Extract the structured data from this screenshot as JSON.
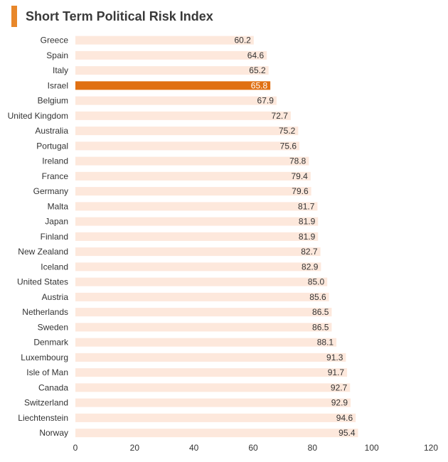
{
  "chart_data": {
    "type": "bar",
    "orientation": "horizontal",
    "title": "Short Term Political Risk Index",
    "xlabel": "",
    "ylabel": "",
    "xlim": [
      0,
      120
    ],
    "x_ticks": [
      0,
      20,
      40,
      60,
      80,
      100,
      120
    ],
    "grid": false,
    "categories": [
      "Greece",
      "Spain",
      "Italy",
      "Israel",
      "Belgium",
      "United Kingdom",
      "Australia",
      "Portugal",
      "Ireland",
      "France",
      "Germany",
      "Malta",
      "Japan",
      "Finland",
      "New Zealand",
      "Iceland",
      "United States",
      "Austria",
      "Netherlands",
      "Sweden",
      "Denmark",
      "Luxembourg",
      "Isle of Man",
      "Canada",
      "Switzerland",
      "Liechtenstein",
      "Norway"
    ],
    "values": [
      60.2,
      64.6,
      65.2,
      65.8,
      67.9,
      72.7,
      75.2,
      75.6,
      78.8,
      79.4,
      79.6,
      81.7,
      81.9,
      81.9,
      82.7,
      82.9,
      85.0,
      85.6,
      86.5,
      86.5,
      88.1,
      91.3,
      91.7,
      92.7,
      92.9,
      94.6,
      95.4
    ],
    "value_labels": [
      "60.2",
      "64.6",
      "65.2",
      "65.8",
      "67.9",
      "72.7",
      "75.2",
      "75.6",
      "78.8",
      "79.4",
      "79.6",
      "81.7",
      "81.9",
      "81.9",
      "82.7",
      "82.9",
      "85.0",
      "85.6",
      "86.5",
      "86.5",
      "88.1",
      "91.3",
      "91.7",
      "92.7",
      "92.9",
      "94.6",
      "95.4"
    ],
    "highlight": "Israel",
    "colors": {
      "bar": "#FDE8DC",
      "highlight": "#E07012",
      "accent": "#E8872A"
    }
  }
}
